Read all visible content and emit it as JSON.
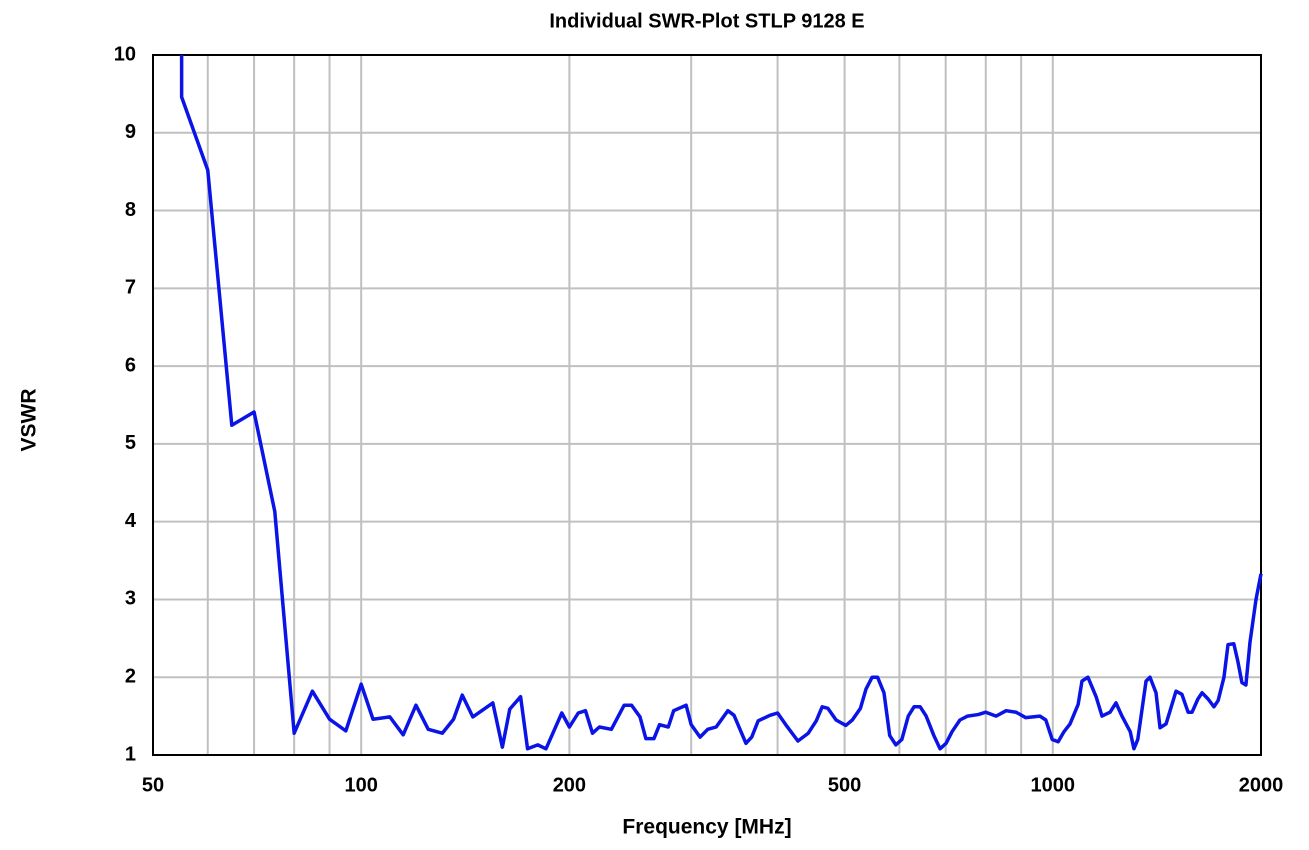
{
  "chart_data": {
    "type": "line",
    "title": "Individual SWR-Plot STLP 9128 E",
    "xlabel": "Frequency [MHz]",
    "ylabel": "VSWR",
    "xscale": "log",
    "xlim": [
      50,
      2000
    ],
    "ylim": [
      1,
      10
    ],
    "xticks": [
      50,
      100,
      200,
      500,
      1000,
      2000
    ],
    "xminor": [
      60,
      70,
      80,
      90,
      300,
      400,
      600,
      700,
      800,
      900
    ],
    "yticks": [
      1,
      2,
      3,
      4,
      5,
      6,
      7,
      8,
      9,
      10
    ],
    "grid": true,
    "x": [
      55,
      55,
      60,
      65,
      70,
      75,
      80,
      85,
      90,
      95,
      100,
      104,
      110,
      115,
      120,
      125,
      131,
      136,
      140,
      145,
      155,
      160,
      164,
      170,
      174,
      180,
      185,
      195,
      200,
      206,
      211,
      216,
      221,
      230,
      240,
      246,
      253,
      258,
      265,
      270,
      278,
      283,
      295,
      300,
      309,
      317,
      326,
      339,
      346,
      360,
      367,
      375,
      390,
      400,
      411,
      428,
      443,
      455,
      464,
      473,
      486,
      502,
      513,
      527,
      537,
      548,
      558,
      570,
      581,
      593,
      605,
      618,
      630,
      643,
      656,
      673,
      687,
      701,
      715,
      734,
      753,
      780,
      800,
      828,
      856,
      885,
      914,
      958,
      977,
      998,
      1018,
      1038,
      1059,
      1088,
      1102,
      1124,
      1155,
      1178,
      1210,
      1234,
      1259,
      1294,
      1310,
      1327,
      1364,
      1382,
      1410,
      1429,
      1458,
      1507,
      1537,
      1569,
      1590,
      1621,
      1644,
      1677,
      1710,
      1734,
      1768,
      1792,
      1827,
      1852,
      1877,
      1902,
      1928,
      1967,
      2000
    ],
    "series": [
      {
        "name": "VSWR",
        "color": "#0a14e6",
        "values": [
          10,
          9.46,
          8.52,
          5.24,
          5.41,
          4.13,
          1.28,
          1.82,
          1.46,
          1.31,
          1.91,
          1.46,
          1.49,
          1.26,
          1.64,
          1.33,
          1.28,
          1.46,
          1.77,
          1.49,
          1.67,
          1.1,
          1.59,
          1.75,
          1.08,
          1.13,
          1.08,
          1.54,
          1.36,
          1.54,
          1.57,
          1.28,
          1.36,
          1.33,
          1.64,
          1.64,
          1.49,
          1.21,
          1.21,
          1.39,
          1.36,
          1.57,
          1.64,
          1.39,
          1.23,
          1.33,
          1.36,
          1.57,
          1.51,
          1.15,
          1.23,
          1.44,
          1.51,
          1.54,
          1.39,
          1.18,
          1.28,
          1.44,
          1.62,
          1.6,
          1.45,
          1.38,
          1.45,
          1.6,
          1.85,
          2.0,
          2.0,
          1.8,
          1.25,
          1.13,
          1.2,
          1.5,
          1.62,
          1.62,
          1.5,
          1.25,
          1.08,
          1.15,
          1.3,
          1.45,
          1.5,
          1.52,
          1.55,
          1.5,
          1.57,
          1.55,
          1.48,
          1.5,
          1.45,
          1.2,
          1.17,
          1.3,
          1.4,
          1.65,
          1.95,
          2.0,
          1.75,
          1.5,
          1.55,
          1.67,
          1.5,
          1.3,
          1.08,
          1.2,
          1.95,
          2.0,
          1.8,
          1.35,
          1.4,
          1.82,
          1.78,
          1.55,
          1.55,
          1.72,
          1.8,
          1.72,
          1.62,
          1.7,
          2.0,
          2.42,
          2.43,
          2.2,
          1.93,
          1.9,
          2.45,
          3.0,
          3.33
        ]
      }
    ]
  }
}
